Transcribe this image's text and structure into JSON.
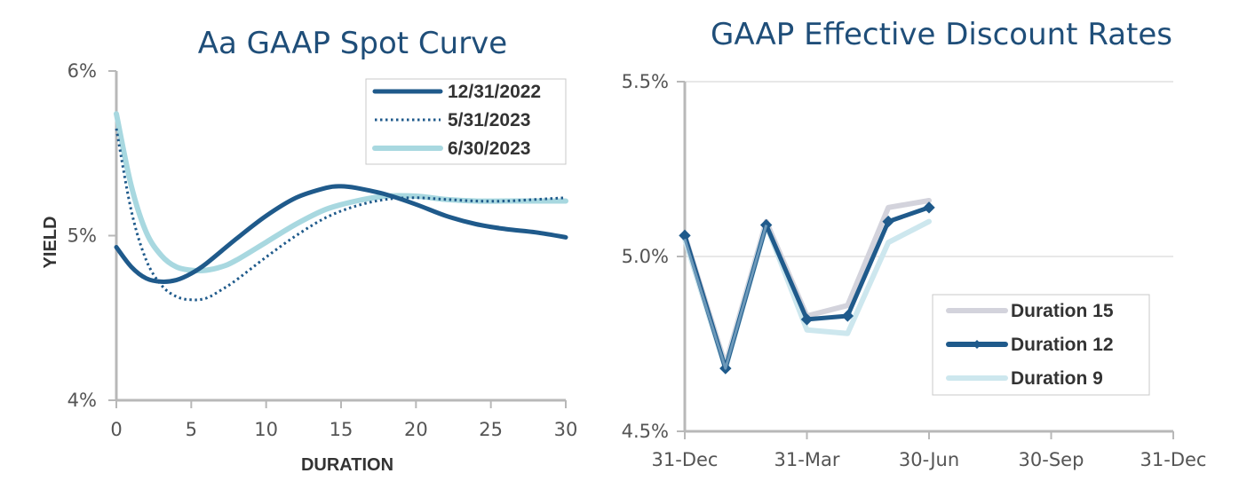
{
  "chart_data": [
    {
      "type": "line",
      "title": "Aa GAAP Spot Curve",
      "xlabel": "DURATION",
      "ylabel": "YIELD",
      "xlim": [
        0,
        30
      ],
      "ylim": [
        4,
        6
      ],
      "x_ticks": [
        0,
        5,
        10,
        15,
        20,
        25,
        30
      ],
      "x_tick_labels": [
        "0",
        "5",
        "10",
        "15",
        "20",
        "25",
        "30"
      ],
      "y_ticks": [
        4,
        5,
        6
      ],
      "y_tick_labels": [
        "4%",
        "5%",
        "6%"
      ],
      "legend_position": "top-right",
      "series": [
        {
          "name": "12/31/2022",
          "color": "#1f5a8b",
          "style": "solid",
          "x": [
            0,
            1,
            2,
            3,
            4,
            5,
            6,
            8,
            10,
            12,
            14,
            15,
            16,
            18,
            20,
            22,
            24,
            26,
            28,
            30
          ],
          "y": [
            4.93,
            4.81,
            4.74,
            4.72,
            4.73,
            4.77,
            4.83,
            4.98,
            5.12,
            5.23,
            5.29,
            5.3,
            5.29,
            5.25,
            5.19,
            5.12,
            5.07,
            5.04,
            5.02,
            4.99
          ]
        },
        {
          "name": "5/31/2023",
          "color": "#1f5a8b",
          "style": "dotted",
          "x": [
            0,
            1,
            2,
            3,
            4,
            5,
            6,
            7,
            8,
            10,
            12,
            14,
            16,
            18,
            20,
            22,
            24,
            26,
            28,
            30
          ],
          "y": [
            5.65,
            5.15,
            4.85,
            4.7,
            4.63,
            4.61,
            4.62,
            4.67,
            4.73,
            4.87,
            5.0,
            5.11,
            5.18,
            5.22,
            5.23,
            5.22,
            5.21,
            5.21,
            5.22,
            5.23
          ]
        },
        {
          "name": "6/30/2023",
          "color": "#a8d8e0",
          "style": "thick",
          "x": [
            0,
            1,
            2,
            3,
            4,
            5,
            6,
            7,
            8,
            10,
            12,
            14,
            16,
            18,
            20,
            22,
            24,
            26,
            28,
            30
          ],
          "y": [
            5.74,
            5.3,
            5.02,
            4.88,
            4.81,
            4.79,
            4.79,
            4.81,
            4.85,
            4.96,
            5.07,
            5.16,
            5.21,
            5.24,
            5.24,
            5.22,
            5.21,
            5.21,
            5.21,
            5.21
          ]
        }
      ]
    },
    {
      "type": "line",
      "title": "GAAP Effective Discount Rates",
      "xlabel": "",
      "ylabel": "",
      "xlim": [
        0,
        12
      ],
      "ylim": [
        4.5,
        5.5
      ],
      "x_ticks": [
        0,
        3,
        6,
        9,
        12
      ],
      "x_tick_labels": [
        "31-Dec",
        "31-Mar",
        "30-Jun",
        "30-Sep",
        "31-Dec"
      ],
      "y_ticks": [
        4.5,
        5.0,
        5.5
      ],
      "y_tick_labels": [
        "4.5%",
        "5.0%",
        "5.5%"
      ],
      "grid": true,
      "legend_position": "bottom-right",
      "series": [
        {
          "name": "Duration 15",
          "color": "#d3d3dc",
          "marker": "none",
          "x": [
            0,
            1,
            2,
            3,
            4,
            5,
            6
          ],
          "y": [
            5.06,
            4.69,
            5.1,
            4.83,
            4.86,
            5.14,
            5.16
          ]
        },
        {
          "name": "Duration 9",
          "color": "#cde7ee",
          "marker": "none",
          "x": [
            0,
            1,
            2,
            3,
            4,
            5,
            6
          ],
          "y": [
            5.05,
            4.68,
            5.09,
            4.79,
            4.78,
            5.04,
            5.1
          ]
        },
        {
          "name": "Duration 12",
          "color": "#1f5a8b",
          "marker": "diamond",
          "x": [
            0,
            1,
            2,
            3,
            4,
            5,
            6
          ],
          "y": [
            5.06,
            4.68,
            5.09,
            4.82,
            4.83,
            5.1,
            5.14
          ]
        }
      ]
    }
  ]
}
